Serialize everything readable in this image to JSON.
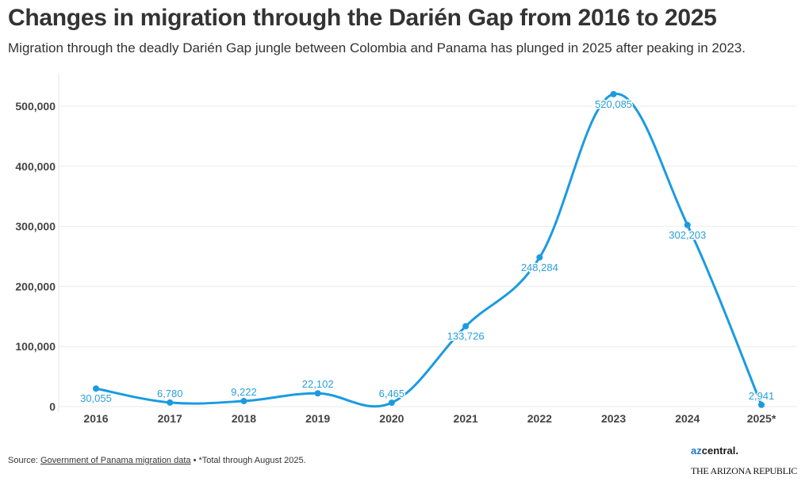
{
  "header": {
    "title": "Changes in migration through the Darién Gap from 2016 to 2025",
    "subtitle": "Migration through the deadly Darién Gap jungle between Colombia and Panama has plunged in 2025 after peaking in 2023."
  },
  "chart_data": {
    "type": "line",
    "categories": [
      "2016",
      "2017",
      "2018",
      "2019",
      "2020",
      "2021",
      "2022",
      "2023",
      "2024",
      "2025*"
    ],
    "values": [
      30055,
      6780,
      9222,
      22102,
      6465,
      133726,
      248284,
      520085,
      302203,
      2941
    ],
    "data_labels": [
      "30,055",
      "6,780",
      "9,222",
      "22,102",
      "6,465",
      "133,726",
      "248,284",
      "520,085",
      "302,203",
      "2,941"
    ],
    "yticks": [
      0,
      100000,
      200000,
      300000,
      400000,
      500000
    ],
    "ytick_labels": [
      "0",
      "100,000",
      "200,000",
      "300,000",
      "400,000",
      "500,000"
    ],
    "ylim": [
      0,
      550000
    ],
    "grid": true,
    "line_color": "#1a9be0",
    "label_color": "#2a9fd8",
    "xlabel": "",
    "ylabel": ""
  },
  "footer": {
    "source_prefix": "Source: ",
    "source_link": "Government of Panama migration data",
    "source_note": " • *Total through August 2025.",
    "logo_az": "az",
    "logo_central": "central.",
    "logo_republic": "THE ARIZONA REPUBLIC"
  }
}
